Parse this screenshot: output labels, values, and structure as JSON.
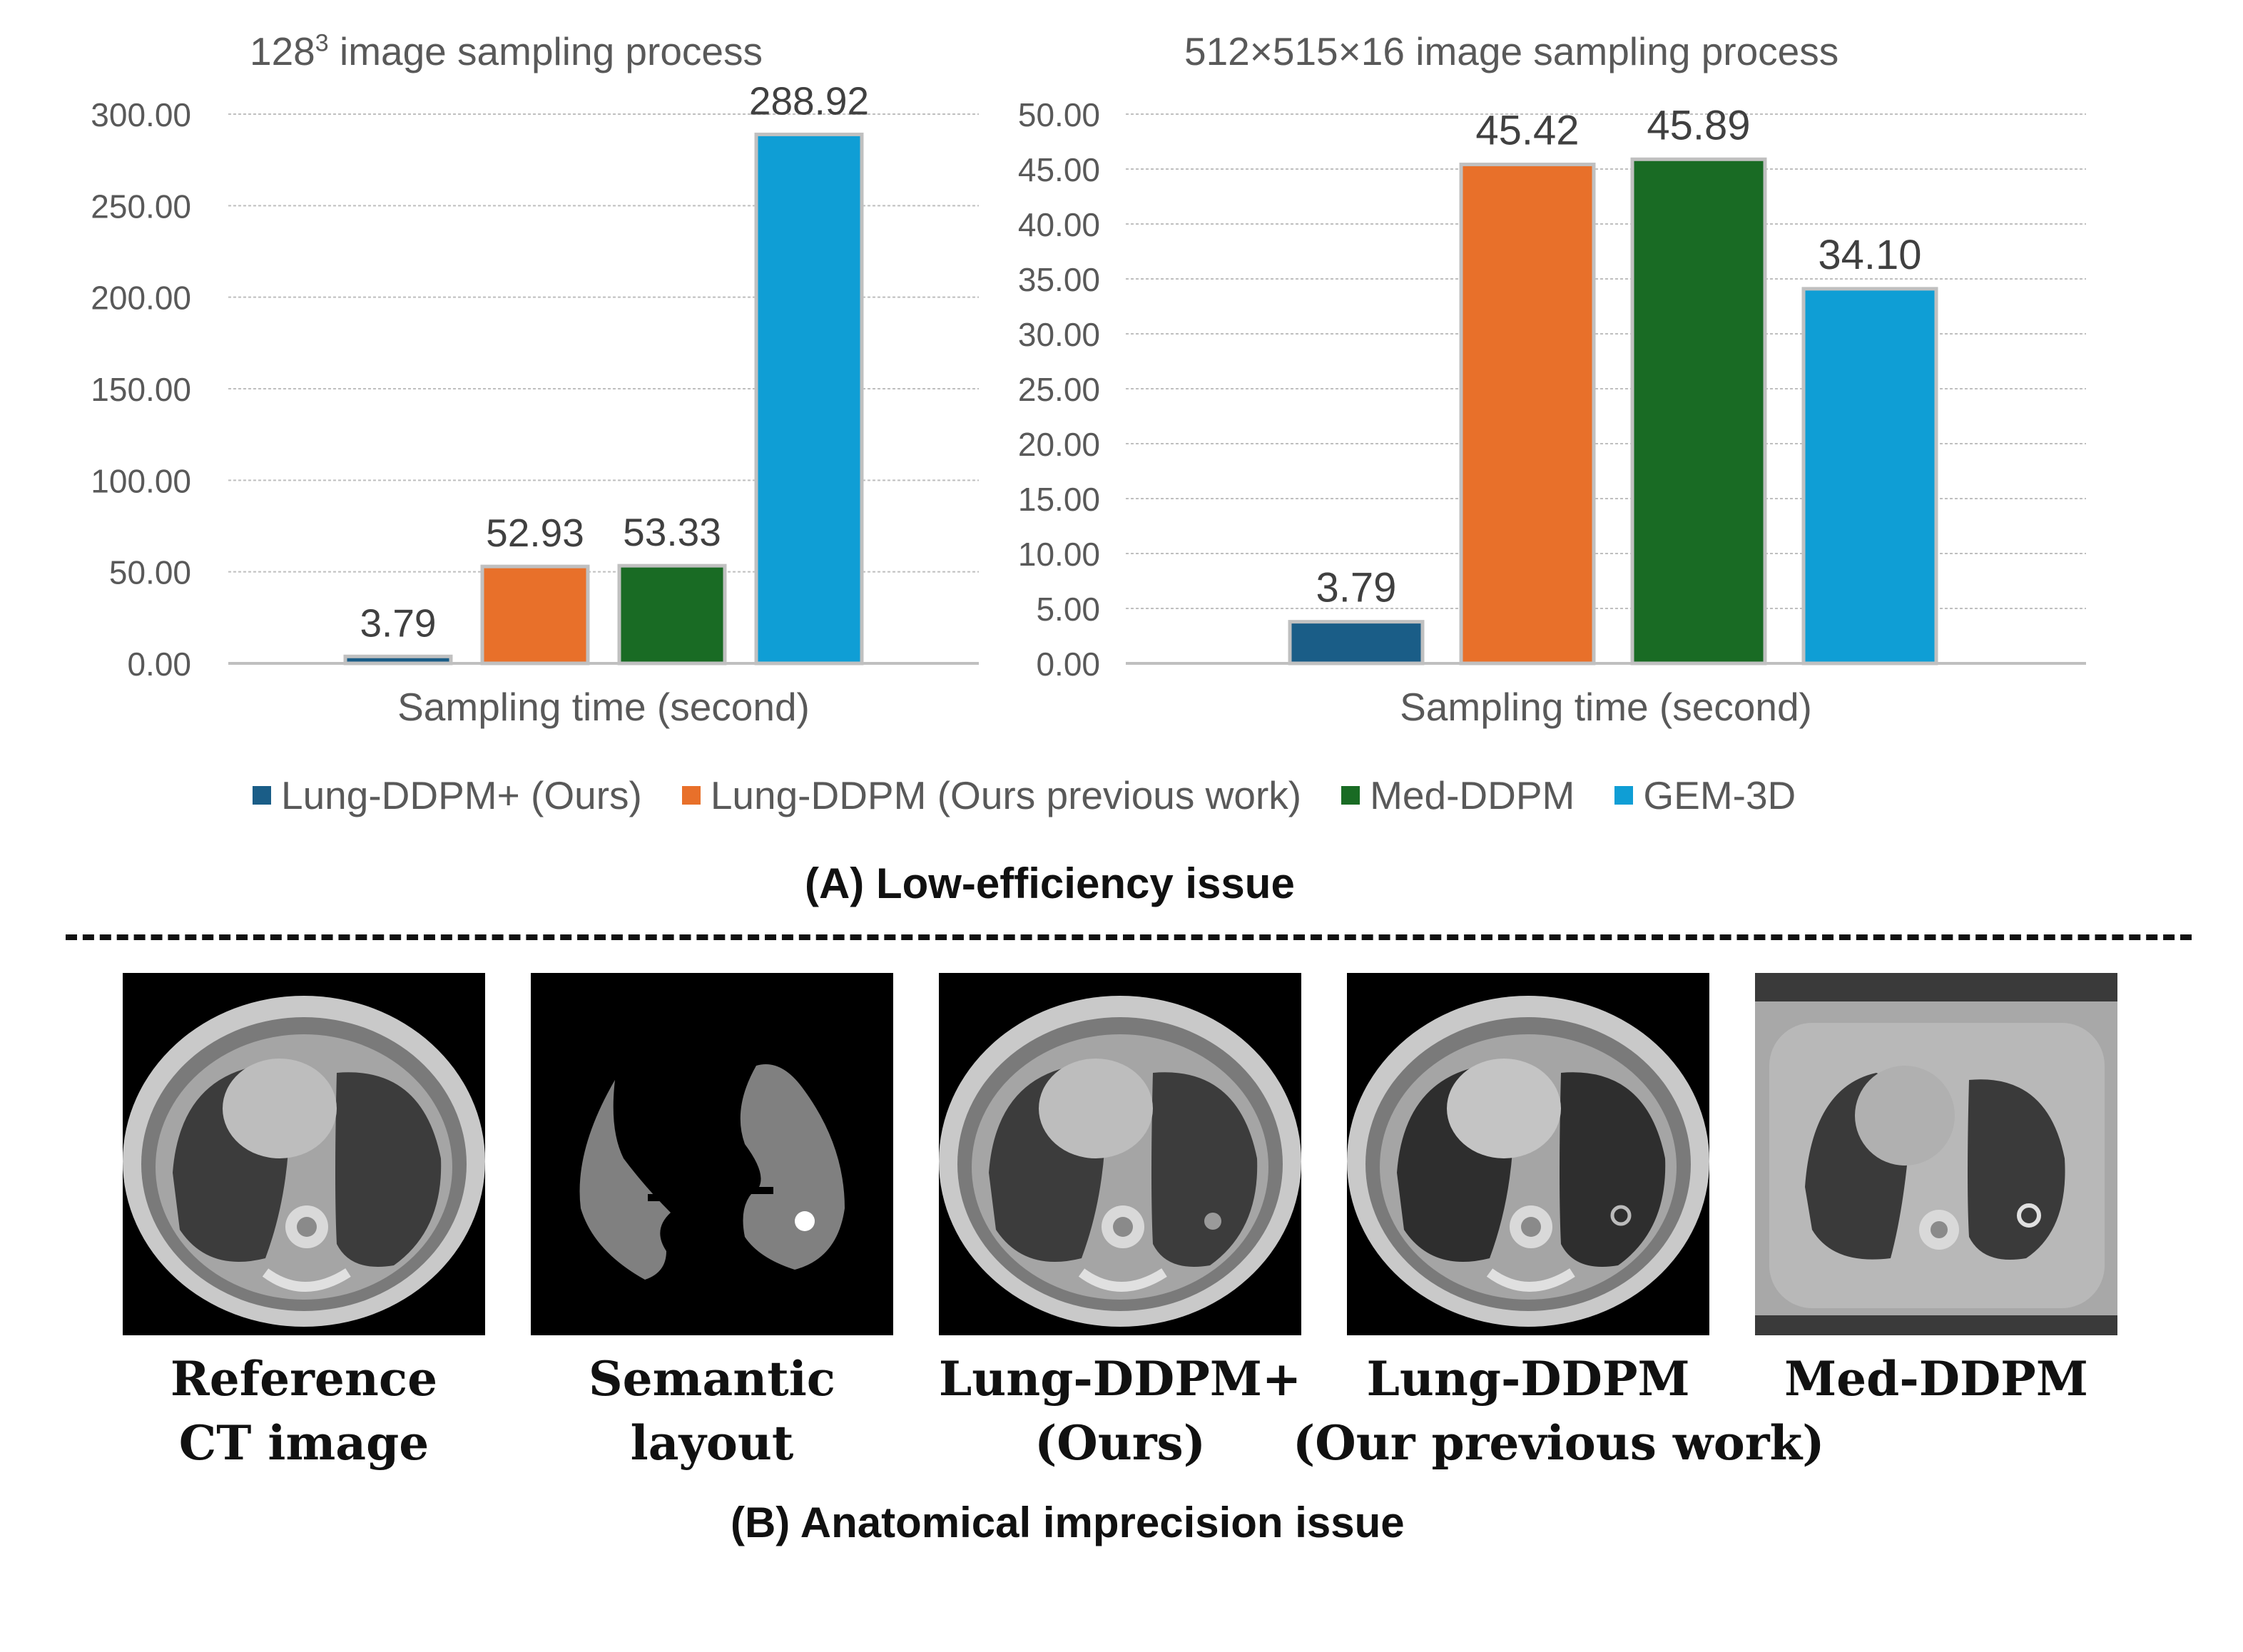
{
  "chart_data": [
    {
      "type": "bar",
      "title_main": "128",
      "title_sup": "3",
      "title_rest": " image sampling process",
      "xlabel": "Sampling time (second)",
      "ylim": [
        0,
        300
      ],
      "ytick_step": 50,
      "ytick_labels": [
        "0.00",
        "50.00",
        "100.00",
        "150.00",
        "200.00",
        "250.00",
        "300.00"
      ],
      "grid": true,
      "series": [
        {
          "name": "Lung-DDPM+ (Ours)",
          "value": 3.79,
          "label": "3.79",
          "color": "#1a5d87"
        },
        {
          "name": "Lung-DDPM (Ours previous work)",
          "value": 52.93,
          "label": "52.93",
          "color": "#e8702a"
        },
        {
          "name": "Med-DDPM",
          "value": 53.33,
          "label": "53.33",
          "color": "#196b24"
        },
        {
          "name": "GEM-3D",
          "value": 288.92,
          "label": "288.92",
          "color": "#0f9ed5"
        }
      ]
    },
    {
      "type": "bar",
      "title": "512×515×16 image sampling process",
      "xlabel": "Sampling time (second)",
      "ylim": [
        0,
        50
      ],
      "ytick_step": 5,
      "ytick_labels": [
        "0.00",
        "5.00",
        "10.00",
        "15.00",
        "20.00",
        "25.00",
        "30.00",
        "35.00",
        "40.00",
        "45.00",
        "50.00"
      ],
      "grid": true,
      "series": [
        {
          "name": "Lung-DDPM+ (Ours)",
          "value": 3.79,
          "label": "3.79",
          "color": "#1a5d87"
        },
        {
          "name": "Lung-DDPM (Ours previous work)",
          "value": 45.42,
          "label": "45.42",
          "color": "#e8702a"
        },
        {
          "name": "Med-DDPM",
          "value": 45.89,
          "label": "45.89",
          "color": "#196b24"
        },
        {
          "name": "GEM-3D",
          "value": 34.1,
          "label": "34.10",
          "color": "#0f9ed5"
        }
      ]
    }
  ],
  "legend": {
    "placement": "bottom",
    "items": [
      {
        "label": "Lung-DDPM+ (Ours)",
        "color": "#1a5d87"
      },
      {
        "label": "Lung-DDPM (Ours previous work)",
        "color": "#e8702a"
      },
      {
        "label": "Med-DDPM",
        "color": "#196b24"
      },
      {
        "label": "GEM-3D",
        "color": "#0f9ed5"
      }
    ]
  },
  "section_a": "(A) Low-efficiency issue",
  "section_b": "(B) Anatomical imprecision issue",
  "images": [
    {
      "line1": "Reference",
      "line2": "CT image"
    },
    {
      "line1": "Semantic",
      "line2": "layout"
    },
    {
      "line1": "Lung-DDPM+",
      "line2": "(Ours)"
    },
    {
      "line1": "Lung-DDPM",
      "line2": "(Our previous work)"
    },
    {
      "line1": "Med-DDPM",
      "line2": ""
    }
  ]
}
